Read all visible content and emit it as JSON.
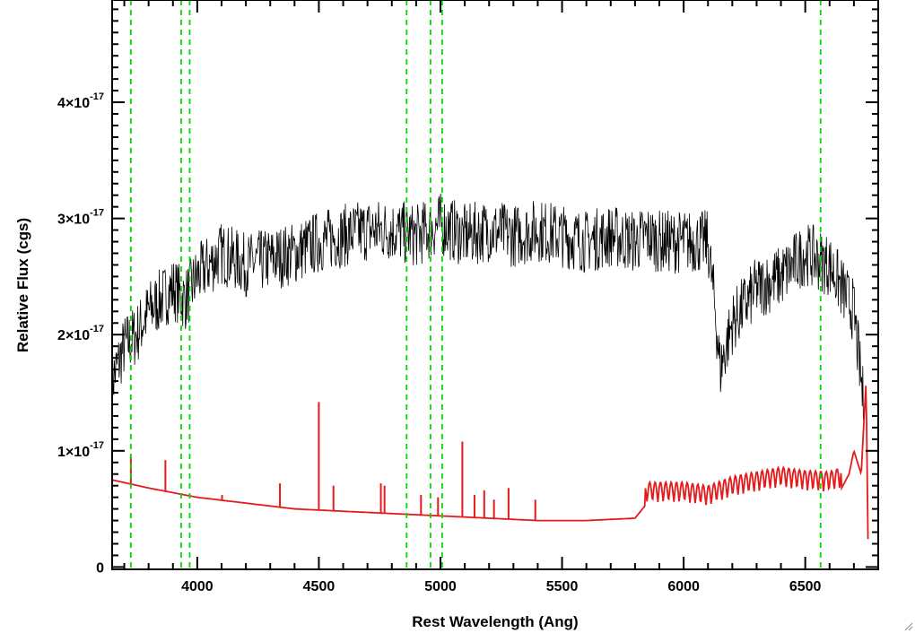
{
  "chart_data": {
    "type": "line",
    "xlabel": "Rest Wavelength (Ang)",
    "ylabel": "Relative Flux (cgs)",
    "xlim": [
      3650,
      6800
    ],
    "ylim": [
      -2e-19,
      4.88e-17
    ],
    "x_ticks": [
      {
        "value": 4000,
        "label": "4000"
      },
      {
        "value": 4500,
        "label": "4500"
      },
      {
        "value": 5000,
        "label": "5000"
      },
      {
        "value": 5500,
        "label": "5500"
      },
      {
        "value": 6000,
        "label": "6000"
      },
      {
        "value": 6500,
        "label": "6500"
      }
    ],
    "y_ticks": [
      {
        "value": 0,
        "mantissa": "0",
        "exponent": ""
      },
      {
        "value": 1e-17,
        "mantissa": "1×10",
        "exponent": "-17"
      },
      {
        "value": 2e-17,
        "mantissa": "2×10",
        "exponent": "-17"
      },
      {
        "value": 3e-17,
        "mantissa": "3×10",
        "exponent": "-17"
      },
      {
        "value": 4e-17,
        "mantissa": "4×10",
        "exponent": "-17"
      }
    ],
    "series": [
      {
        "color": "#000000",
        "style": "noisy spectrum",
        "x": [
          3650,
          3700,
          3750,
          3800,
          3850,
          3900,
          3950,
          4000,
          4050,
          4100,
          4200,
          4300,
          4400,
          4500,
          4600,
          4700,
          4800,
          4900,
          5000,
          5100,
          5200,
          5300,
          5400,
          5500,
          5600,
          5700,
          5800,
          5850,
          5900,
          6000,
          6100,
          6130,
          6150,
          6200,
          6300,
          6400,
          6500,
          6600,
          6650,
          6700,
          6740
        ],
        "y": [
          1.6e-17,
          1.9e-17,
          2e-17,
          2.2e-17,
          2.3e-17,
          2.4e-17,
          2.3e-17,
          2.5e-17,
          2.6e-17,
          2.7e-17,
          2.6e-17,
          2.65e-17,
          2.7e-17,
          2.8e-17,
          2.85e-17,
          2.9e-17,
          2.9e-17,
          2.85e-17,
          2.95e-17,
          2.85e-17,
          2.9e-17,
          2.85e-17,
          2.9e-17,
          2.85e-17,
          2.8e-17,
          2.85e-17,
          2.8e-17,
          2.85e-17,
          2.8e-17,
          2.8e-17,
          2.8e-17,
          2.2e-17,
          1.7e-17,
          2.1e-17,
          2.4e-17,
          2.5e-17,
          2.7e-17,
          2.6e-17,
          2.4e-17,
          2.2e-17,
          1.4e-17
        ]
      },
      {
        "color": "#e41a1c",
        "style": "model continuum",
        "x": [
          3650,
          3800,
          4000,
          4200,
          4400,
          4600,
          4800,
          5000,
          5200,
          5400,
          5600,
          5800,
          5850,
          6000,
          6100,
          6200,
          6400,
          6500,
          6600,
          6650,
          6680,
          6700,
          6730,
          6750,
          6760
        ],
        "y": [
          7.5e-18,
          6.8e-18,
          6e-18,
          5.5e-18,
          5e-18,
          4.8e-18,
          4.6e-18,
          4.4e-18,
          4.2e-18,
          4e-18,
          4e-18,
          4.2e-18,
          5.5e-18,
          5.5e-18,
          5.2e-18,
          6e-18,
          6.8e-18,
          6.5e-18,
          6.4e-18,
          6.8e-18,
          8e-18,
          1e-17,
          8e-18,
          1.6e-17,
          -1e-18
        ]
      }
    ],
    "emission_peaks": [
      {
        "x": 3727,
        "y": 9.5e-18
      },
      {
        "x": 3869,
        "y": 9.2e-18
      },
      {
        "x": 4102,
        "y": 6.2e-18
      },
      {
        "x": 4340,
        "y": 7.2e-18
      },
      {
        "x": 4500,
        "y": 1.42e-17
      },
      {
        "x": 4560,
        "y": 7e-18
      },
      {
        "x": 4755,
        "y": 7.2e-18
      },
      {
        "x": 4770,
        "y": 7e-18
      },
      {
        "x": 4920,
        "y": 6.2e-18
      },
      {
        "x": 4990,
        "y": 6e-18
      },
      {
        "x": 5090,
        "y": 1.08e-17
      },
      {
        "x": 5140,
        "y": 6.2e-18
      },
      {
        "x": 5180,
        "y": 6.6e-18
      },
      {
        "x": 5220,
        "y": 5.8e-18
      },
      {
        "x": 5280,
        "y": 6.8e-18
      },
      {
        "x": 5390,
        "y": 5.8e-18
      }
    ],
    "vertical_lines": {
      "color": "#00dd00",
      "style": "dashed",
      "x": [
        3727,
        3934,
        3969,
        4861,
        4959,
        5007,
        6563
      ]
    }
  }
}
